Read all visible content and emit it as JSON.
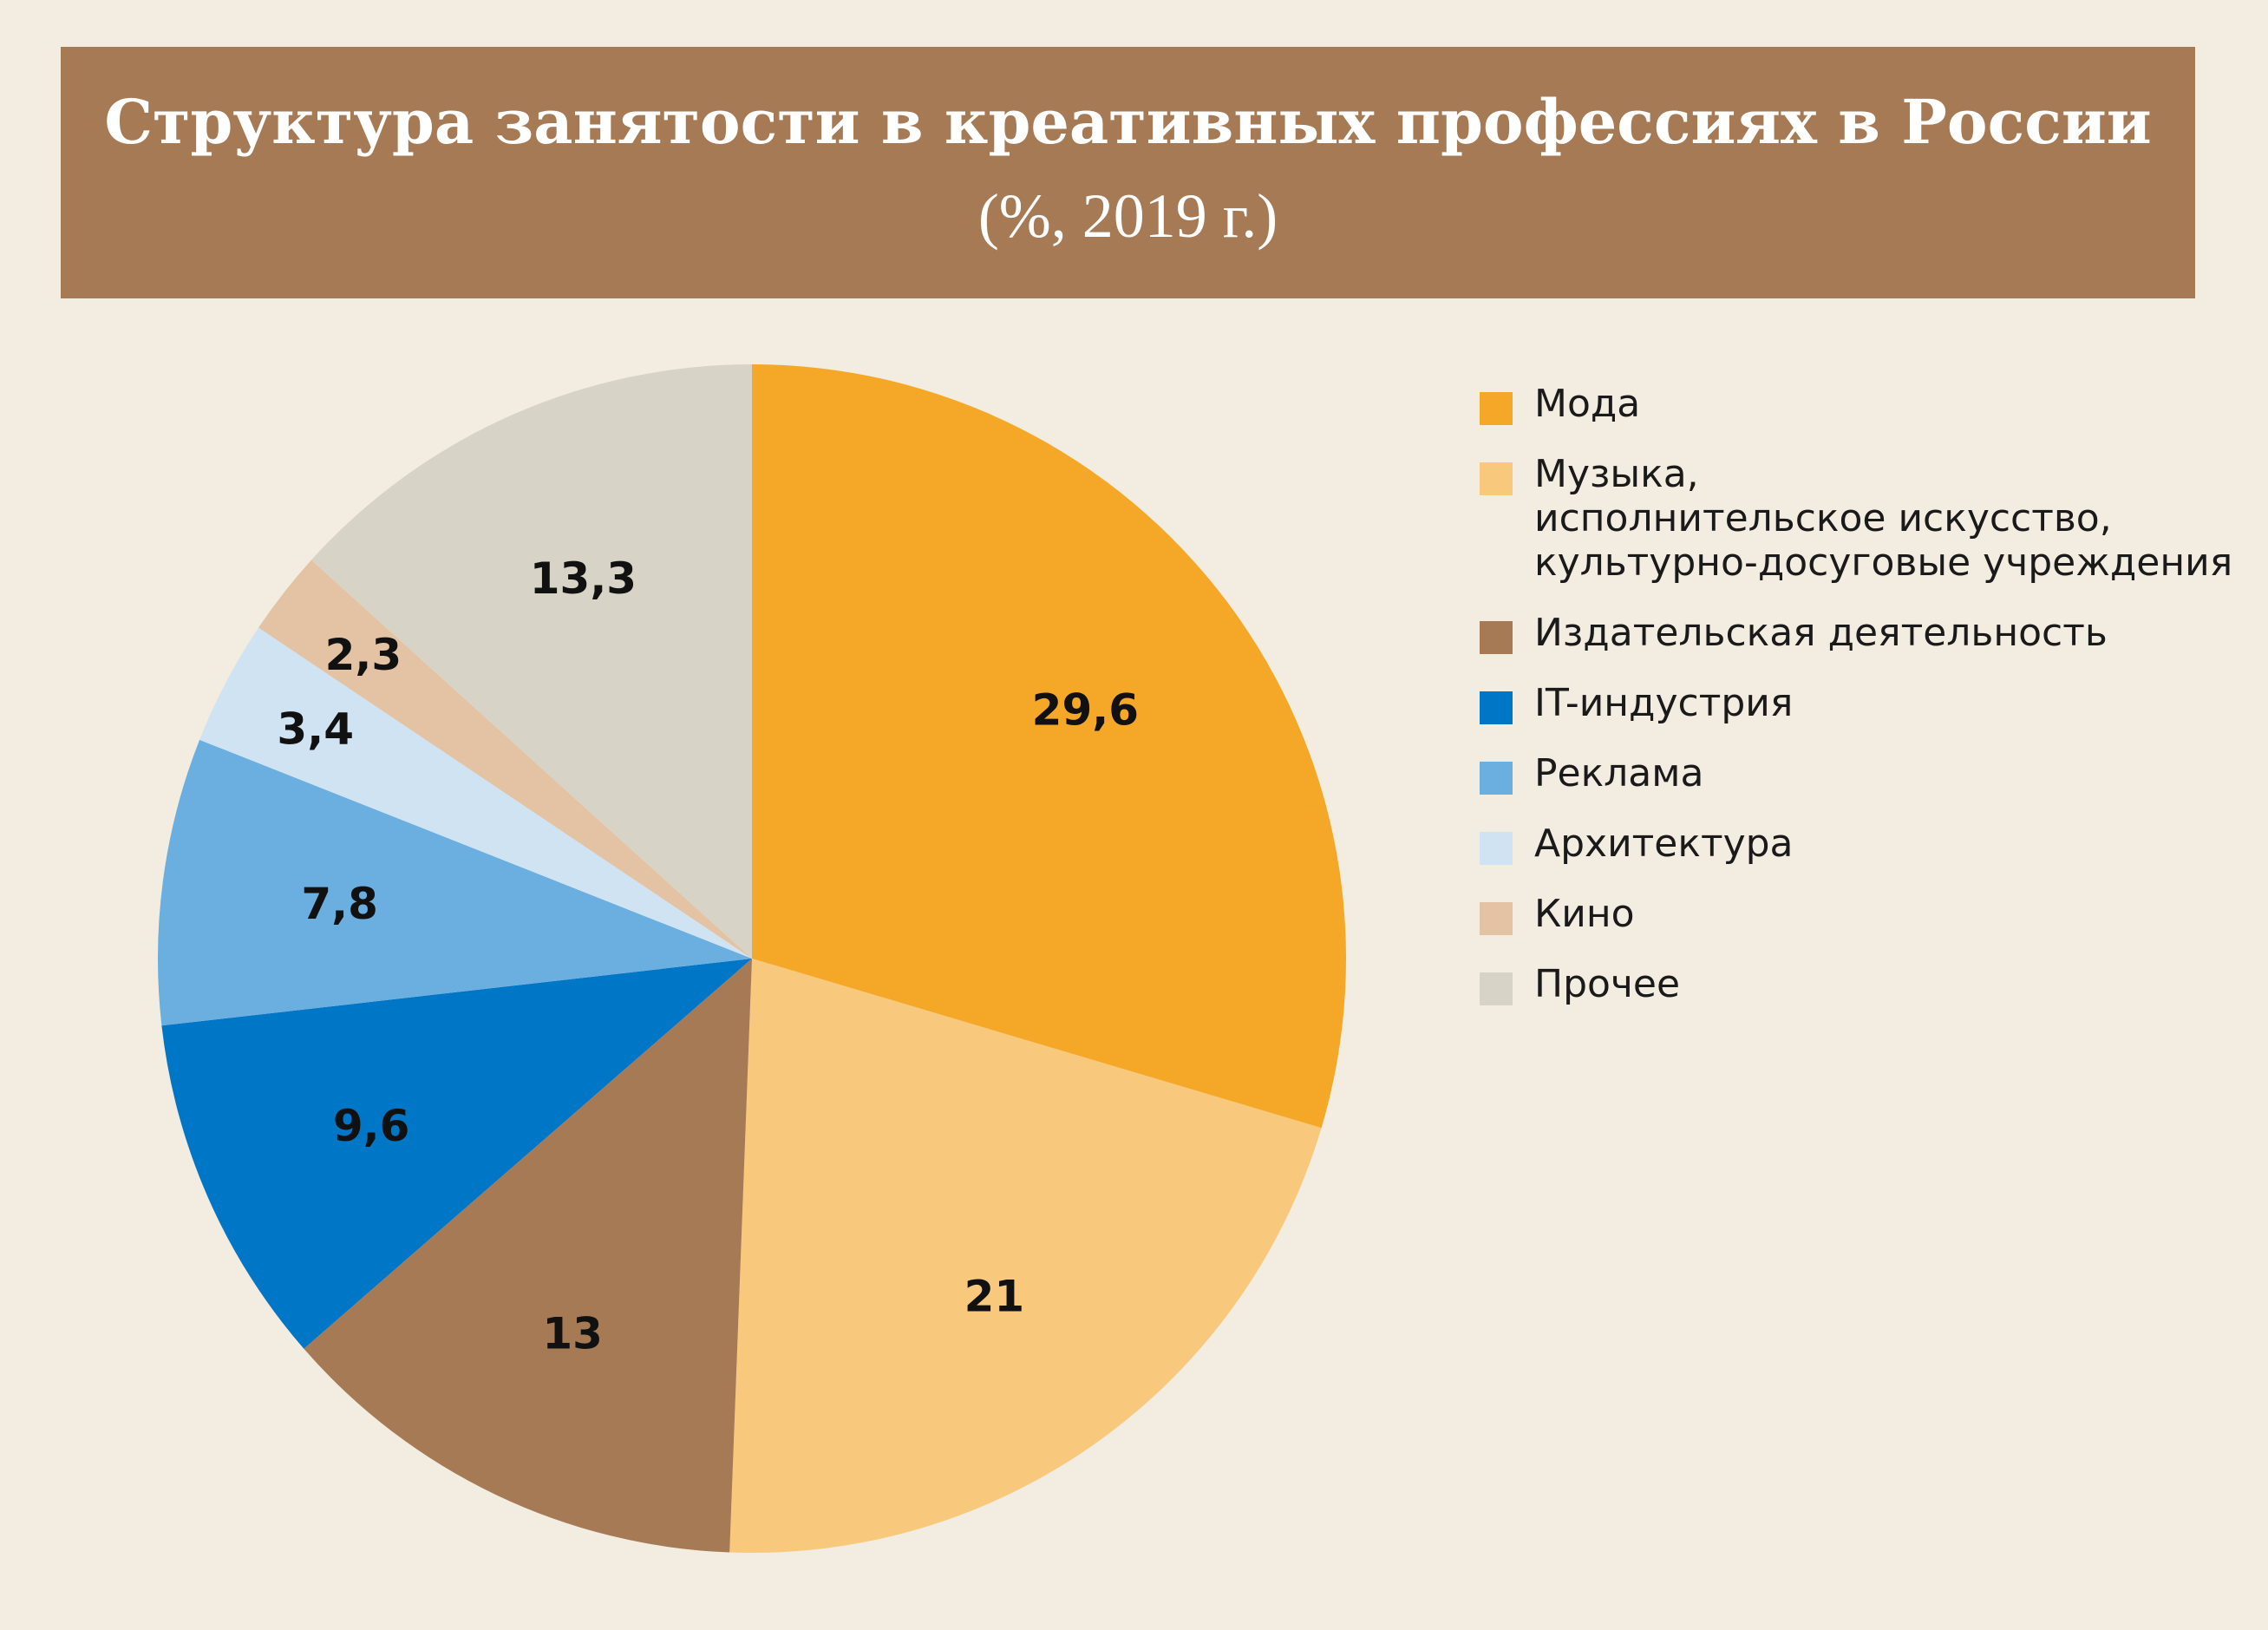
{
  "header": {
    "title": "Структура занятости в креативных профессиях в России",
    "subtitle": "(%, 2019 г.)"
  },
  "chart_data": {
    "type": "pie",
    "title": "Структура занятости в креативных профессиях в России",
    "subtitle": "(%, 2019 г.)",
    "start": "12 o'clock, clockwise",
    "legend_position": "right",
    "slices": [
      {
        "label": "Мода",
        "value": 29.6,
        "display": "29,6",
        "color": "#f5a828"
      },
      {
        "label": "Музыка,\nисполнительское искусство,\nкультурно-досуговые учреждения",
        "value": 21,
        "display": "21",
        "color": "#f8c97c"
      },
      {
        "label": "Издательская деятельность",
        "value": 13,
        "display": "13",
        "color": "#a67a54"
      },
      {
        "label": "IT-индустрия",
        "value": 9.6,
        "display": "9,6",
        "color": "#0076c6"
      },
      {
        "label": "Реклама",
        "value": 7.8,
        "display": "7,8",
        "color": "#6aafdf"
      },
      {
        "label": "Архитектура",
        "value": 3.4,
        "display": "3,4",
        "color": "#cfe3f3"
      },
      {
        "label": "Кино",
        "value": 2.3,
        "display": "2,3",
        "color": "#e3c3a3"
      },
      {
        "label": "Прочее",
        "value": 13.3,
        "display": "13,3",
        "color": "#d7d3c7"
      }
    ]
  }
}
